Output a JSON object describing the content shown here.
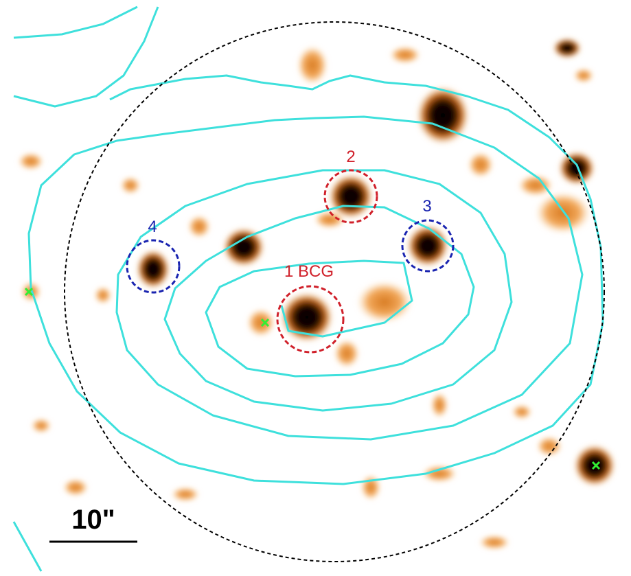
{
  "labels": [
    "1 BCG",
    "2",
    "3",
    "4"
  ],
  "scale_bar": {
    "label": "10\""
  }
}
